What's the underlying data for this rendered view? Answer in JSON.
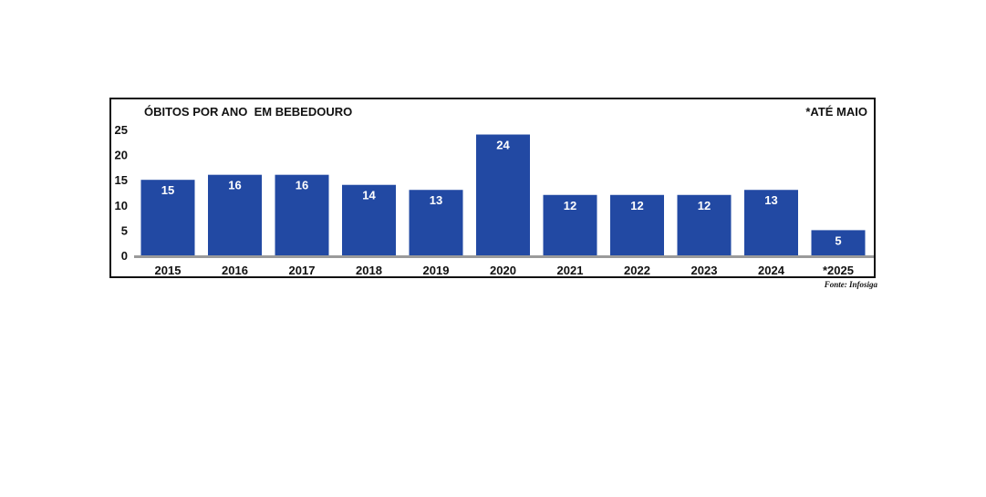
{
  "chart_data": {
    "type": "bar",
    "title": "ÓBITOS POR ANO  EM BEBEDOURO",
    "note": "*ATÉ MAIO",
    "source": "Fonte: Infosiga",
    "categories": [
      "2015",
      "2016",
      "2017",
      "2018",
      "2019",
      "2020",
      "2021",
      "2022",
      "2023",
      "2024",
      "*2025"
    ],
    "values": [
      15,
      16,
      16,
      14,
      13,
      24,
      12,
      12,
      12,
      13,
      5
    ],
    "ylim": [
      0,
      25
    ],
    "yticks": [
      "0",
      "5",
      "10",
      "15",
      "20",
      "25"
    ],
    "xlabel": "",
    "ylabel": "",
    "grid": false,
    "colors": {
      "bar": "#2249a3",
      "baseline": "#9a9a9a",
      "label": "#ffffff"
    }
  }
}
